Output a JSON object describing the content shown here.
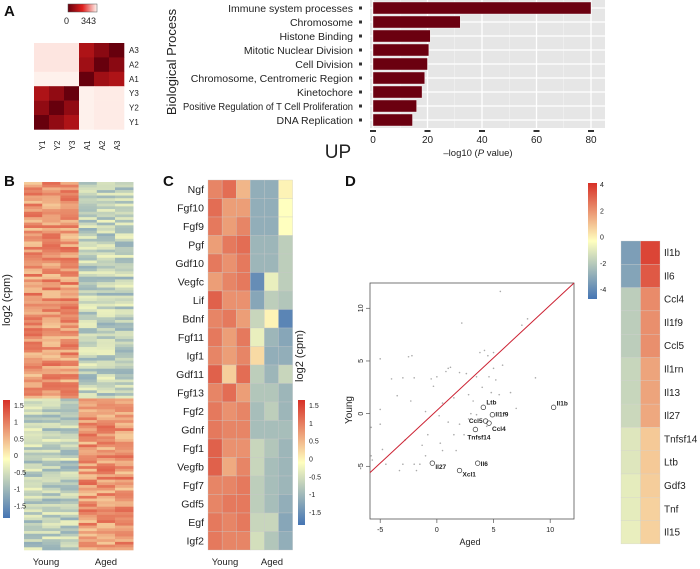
{
  "panel_labels": {
    "a": "A",
    "b": "B",
    "c": "C",
    "d": "D"
  },
  "chart_data": [
    {
      "id": "A-corr",
      "type": "heatmap",
      "legend": {
        "min_label": "0",
        "max_label": "343",
        "min": 0,
        "max": 343,
        "low_color": "#67000d",
        "high_color": "#fff5f0"
      },
      "columns": [
        "Y1",
        "Y2",
        "Y3",
        "A1",
        "A2",
        "A3"
      ],
      "rows": [
        "A3",
        "A2",
        "A1",
        "Y3",
        "Y2",
        "Y1"
      ],
      "values": [
        [
          330,
          330,
          330,
          100,
          50,
          0
        ],
        [
          330,
          330,
          330,
          80,
          0,
          50
        ],
        [
          340,
          340,
          340,
          0,
          80,
          100
        ],
        [
          100,
          60,
          0,
          340,
          335,
          335
        ],
        [
          60,
          0,
          60,
          340,
          335,
          335
        ],
        [
          0,
          60,
          100,
          340,
          335,
          335
        ]
      ]
    },
    {
      "id": "A-go",
      "type": "bar",
      "orientation": "horizontal",
      "categories": [
        "Immune system processes",
        "Chromosome",
        "Histone Binding",
        "Mitotic Nuclear Division",
        "Cell Division",
        "Chromosome, Centromeric Region",
        "Kinetochore",
        "Positive Regulation of T Cell Proliferation",
        "DNA Replication"
      ],
      "values": [
        80,
        32,
        21,
        20.5,
        20,
        19,
        18,
        16,
        14.5
      ],
      "ylabel": "Biological Process",
      "xlabel_prefix": "–log10 (",
      "xlabel_italic": "P",
      "xlabel_suffix": " value)",
      "xticks": [
        "0",
        "20",
        "40",
        "60",
        "80"
      ],
      "xlim": [
        0,
        83
      ],
      "annotation": "UP",
      "bar_color": "#6b0010",
      "grid": true
    },
    {
      "id": "B",
      "type": "heatmap",
      "colorbar_label": "log2 (cpm)",
      "colorbar_ticks": [
        "1.5",
        "1",
        "0.5",
        "0",
        "-0.5",
        "-1",
        "-1.5"
      ],
      "group_labels": [
        "Young",
        "Aged"
      ],
      "clusters": [
        {
          "rows": 80,
          "young_mean": 0.9,
          "aged_mean": -0.6
        },
        {
          "rows": 56,
          "young_mean": -0.6,
          "aged_mean": 0.9
        }
      ]
    },
    {
      "id": "C",
      "type": "heatmap",
      "colorbar_label": "log2 (cpm)",
      "colorbar_ticks": [
        "1.5",
        "1",
        "0.5",
        "0",
        "-0.5",
        "-1",
        "-1.5"
      ],
      "group_labels": [
        "Young",
        "Aged"
      ],
      "rows": [
        "Ngf",
        "Fgf10",
        "Fgf9",
        "Pgf",
        "Gdf10",
        "Vegfc",
        "Lif",
        "Bdnf",
        "Fgf11",
        "Igf1",
        "Gdf11",
        "Fgf13",
        "Fgf2",
        "Gdnf",
        "Fgf1",
        "Vegfb",
        "Fgf7",
        "Gdf5",
        "Egf",
        "Igf2"
      ],
      "values": [
        [
          1.0,
          1.2,
          0.6,
          -1.0,
          -1.0,
          0.1
        ],
        [
          1.2,
          0.8,
          0.8,
          -1.0,
          -1.0,
          0.0
        ],
        [
          1.1,
          0.8,
          1.0,
          -1.0,
          -1.0,
          0.0
        ],
        [
          0.8,
          1.1,
          1.2,
          -0.9,
          -0.9,
          -0.6
        ],
        [
          1.1,
          0.9,
          1.1,
          -0.9,
          -0.9,
          -0.6
        ],
        [
          0.8,
          1.0,
          1.1,
          -1.4,
          -0.2,
          -0.6
        ],
        [
          1.3,
          0.9,
          0.9,
          -1.1,
          -0.6,
          -0.7
        ],
        [
          1.0,
          1.1,
          0.8,
          -0.5,
          0.1,
          -1.5
        ],
        [
          1.1,
          0.8,
          1.1,
          -0.2,
          -0.9,
          -1.1
        ],
        [
          1.0,
          0.8,
          1.0,
          0.3,
          -1.0,
          -1.0
        ],
        [
          1.3,
          0.4,
          1.2,
          -0.6,
          -0.9,
          -0.5
        ],
        [
          1.0,
          1.2,
          0.8,
          -0.7,
          -0.7,
          -0.9
        ],
        [
          1.1,
          0.9,
          1.0,
          -0.8,
          -0.6,
          -0.9
        ],
        [
          1.1,
          1.0,
          1.0,
          -0.8,
          -0.8,
          -0.8
        ],
        [
          1.3,
          0.9,
          0.9,
          -0.5,
          -0.7,
          -0.9
        ],
        [
          1.3,
          0.7,
          1.0,
          -0.5,
          -0.8,
          -0.9
        ],
        [
          1.0,
          1.0,
          1.1,
          -0.6,
          -0.8,
          -0.9
        ],
        [
          1.0,
          1.1,
          1.1,
          -0.6,
          -0.8,
          -1.0
        ],
        [
          1.1,
          1.0,
          1.1,
          -0.5,
          -0.5,
          -1.1
        ],
        [
          1.1,
          1.0,
          1.0,
          -0.4,
          -0.7,
          -1.0
        ]
      ]
    },
    {
      "id": "D-scatter",
      "type": "scatter",
      "xlabel": "Aged",
      "ylabel": "Young",
      "xticks": [
        "-5",
        "0",
        "5",
        "10"
      ],
      "yticks": [
        "-5",
        "0",
        "5",
        "10"
      ],
      "xlim": [
        -5.9,
        12.1
      ],
      "ylim": [
        -10,
        12.4
      ],
      "reference_line": "y = x",
      "line_color": "#cc2233",
      "points": [
        [
          -5.8,
          -1.3
        ],
        [
          -5.8,
          -4
        ],
        [
          -5.7,
          -4.4
        ],
        [
          -5,
          -1
        ],
        [
          -5,
          0.4
        ],
        [
          -5,
          5.2
        ],
        [
          -4.8,
          -3.4
        ],
        [
          -4.5,
          -4.8
        ],
        [
          -4,
          3.3
        ],
        [
          -3.5,
          1.7
        ],
        [
          -3.3,
          -5.4
        ],
        [
          -3,
          3.4
        ],
        [
          -3,
          -4.8
        ],
        [
          -2.8,
          -2.5
        ],
        [
          -2.5,
          5.4
        ],
        [
          -2.3,
          1.2
        ],
        [
          -2.2,
          5.5
        ],
        [
          -2,
          3.4
        ],
        [
          -2,
          -4.8
        ],
        [
          -1.8,
          -5.4
        ],
        [
          -1.5,
          -4.8
        ],
        [
          -1.3,
          -3
        ],
        [
          -1,
          0.2
        ],
        [
          -1,
          -4
        ],
        [
          -0.5,
          3.3
        ],
        [
          -0.3,
          2.6
        ],
        [
          0,
          3.5
        ],
        [
          0.2,
          -0.2
        ],
        [
          0.3,
          -2.8
        ],
        [
          0.5,
          -3.5
        ],
        [
          0.8,
          4.0
        ],
        [
          1,
          4.3
        ],
        [
          1,
          -0.8
        ],
        [
          1.2,
          4.4
        ],
        [
          1.5,
          1.5
        ],
        [
          1.7,
          -3.5
        ],
        [
          2,
          3.9
        ],
        [
          2,
          -1
        ],
        [
          2.2,
          8.6
        ],
        [
          2.4,
          -2
        ],
        [
          2.6,
          3.8
        ],
        [
          2.8,
          -0.5
        ],
        [
          3,
          0
        ],
        [
          3.2,
          1.2
        ],
        [
          3.5,
          3.5
        ],
        [
          3.5,
          -0.1
        ],
        [
          3.8,
          5.8
        ],
        [
          4,
          2.5
        ],
        [
          4.2,
          6
        ],
        [
          4.5,
          5.5
        ],
        [
          4.6,
          3.5
        ],
        [
          4.8,
          2
        ],
        [
          5,
          5.8
        ],
        [
          5,
          4.3
        ],
        [
          5.2,
          3.2
        ],
        [
          5.5,
          1.8
        ],
        [
          5.6,
          11.6
        ],
        [
          5.8,
          4.6
        ],
        [
          6.5,
          2
        ],
        [
          7,
          0.5
        ],
        [
          7.5,
          8.4
        ],
        [
          8,
          9
        ],
        [
          8.7,
          3.4
        ],
        [
          2.8,
          1.8
        ],
        [
          1.5,
          -2
        ],
        [
          0.5,
          1
        ],
        [
          -0.8,
          -2
        ],
        [
          4.4,
          -1.2
        ]
      ],
      "labeled_points": [
        {
          "label": "Il1b",
          "x": 10.3,
          "y": 0.6
        },
        {
          "label": "Ltb",
          "x": 4.1,
          "y": 0.6
        },
        {
          "label": "Il1f9",
          "x": 4.9,
          "y": -0.1
        },
        {
          "label": "Ccl5",
          "x": 4.3,
          "y": -0.7
        },
        {
          "label": "Ccl4",
          "x": 4.6,
          "y": -0.9
        },
        {
          "label": "Tnfsf14",
          "x": 3.4,
          "y": -1.5
        },
        {
          "label": "Il6",
          "x": 3.6,
          "y": -4.7
        },
        {
          "label": "Xcl1",
          "x": 2.0,
          "y": -5.4
        },
        {
          "label": "Il27",
          "x": -0.4,
          "y": -4.7
        }
      ],
      "label_color": "#2d5a3a"
    },
    {
      "id": "D-heatmap",
      "type": "heatmap",
      "colorbar_ticks": [
        "4",
        "2",
        "0",
        "-2",
        "-4"
      ],
      "range": [
        -5,
        5
      ],
      "rows": [
        "Il1b",
        "Il6",
        "Ccl4",
        "Il1f9",
        "Ccl5",
        "Il1rn",
        "Il13",
        "Il27",
        "Tnfsf14",
        "Ltb",
        "Gdf3",
        "Tnf",
        "Il15"
      ],
      "values": [
        [
          -3.5,
          4.5
        ],
        [
          -3.3,
          4.0
        ],
        [
          -1.8,
          2.8
        ],
        [
          -1.8,
          2.7
        ],
        [
          -1.8,
          2.7
        ],
        [
          -1.5,
          2.2
        ],
        [
          -1.5,
          2.2
        ],
        [
          -1.4,
          2.1
        ],
        [
          -0.9,
          1.3
        ],
        [
          -0.9,
          1.3
        ],
        [
          -0.7,
          1.2
        ],
        [
          -0.7,
          1.1
        ],
        [
          -0.6,
          1.1
        ]
      ]
    }
  ],
  "colors": {
    "div_low": "#4575b4",
    "div_mid": "#ffffbf",
    "div_high": "#d73027"
  }
}
